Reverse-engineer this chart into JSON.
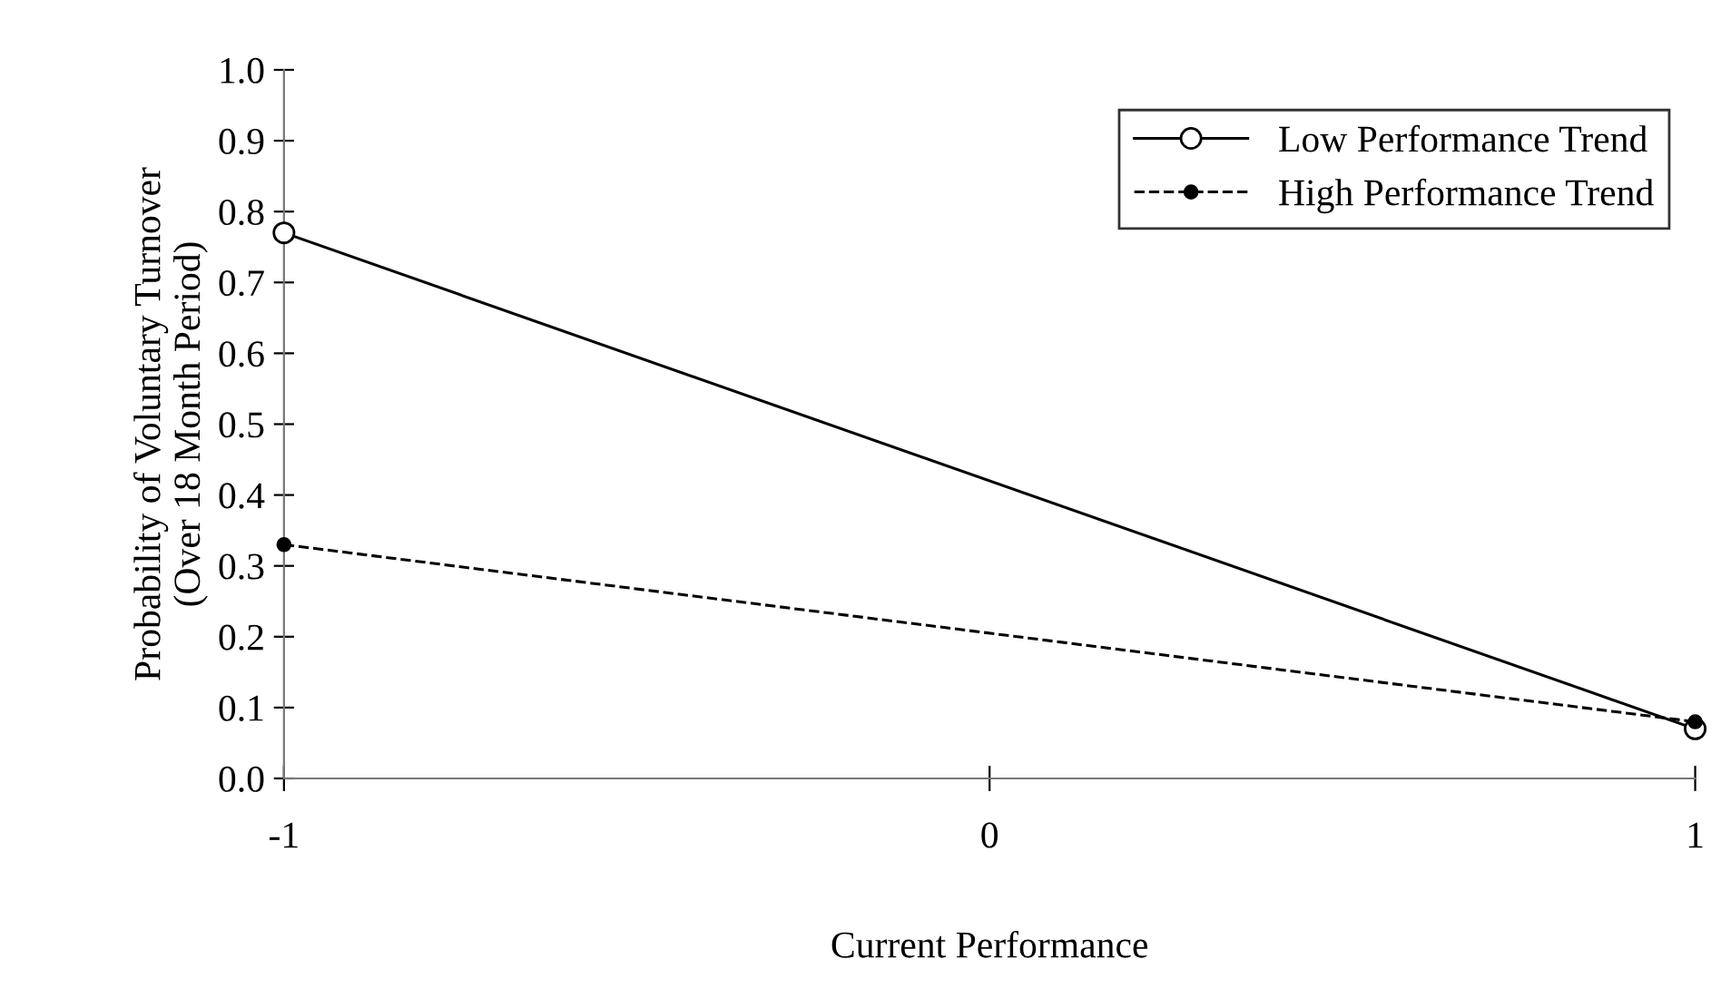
{
  "chart_data": {
    "type": "line",
    "xlabel": "Current Performance",
    "ylabel": "Probability of Voluntary Turnover\n(Over 18 Month Period)",
    "x": [
      -1,
      1
    ],
    "series": [
      {
        "name": "Low Performance Trend",
        "color": "#000000",
        "values": [
          0.77,
          0.07
        ],
        "marker": "circle",
        "line_style": "solid"
      },
      {
        "name": "High Performance Trend",
        "color": "#000000",
        "values": [
          0.33,
          0.08
        ],
        "marker": "circle",
        "line_style": "dashed"
      }
    ],
    "xlim": [
      -1,
      1
    ],
    "xticks": [
      -1,
      0,
      1
    ],
    "ylim": [
      0,
      1.0
    ],
    "yticks": [
      {
        "value": 0,
        "label": "0.0"
      },
      0.1,
      0.2,
      0.3,
      0.4,
      0.5,
      0.6,
      0.7,
      0.8,
      0.9,
      {
        "value": 1.0,
        "label": "1.0"
      }
    ],
    "grid": false,
    "legend": "top right"
  }
}
